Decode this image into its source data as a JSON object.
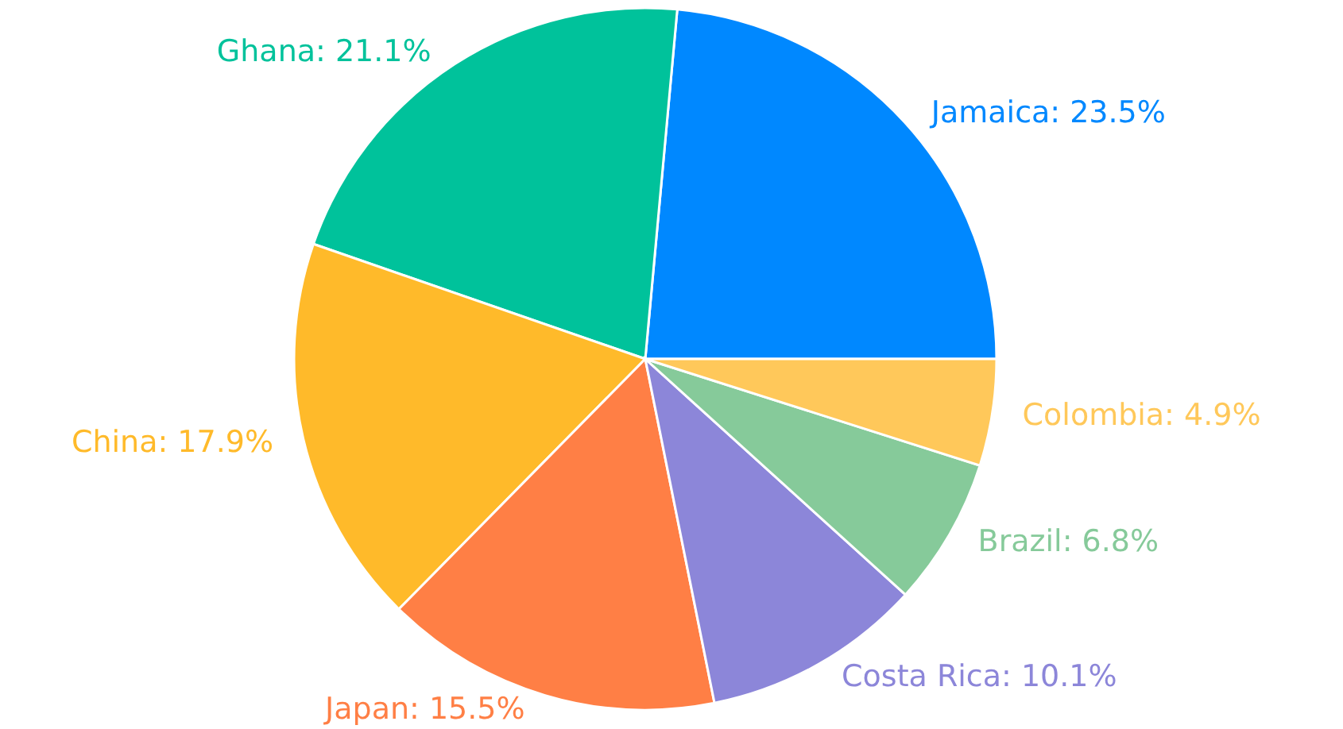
{
  "chart_data": {
    "type": "pie",
    "categories": [
      "Jamaica",
      "Ghana",
      "China",
      "Japan",
      "Costa Rica",
      "Brazil",
      "Colombia"
    ],
    "values": [
      23.5,
      21.1,
      17.9,
      15.5,
      10.1,
      6.8,
      4.9
    ],
    "value_labels": [
      "23.5%",
      "21.1%",
      "17.9%",
      "15.5%",
      "10.1%",
      "6.8%",
      "4.9%"
    ],
    "colors": [
      "#0088ff",
      "#00c29b",
      "#ffba2a",
      "#ff7f45",
      "#8c86d9",
      "#86ca9a",
      "#ffc85a"
    ]
  }
}
